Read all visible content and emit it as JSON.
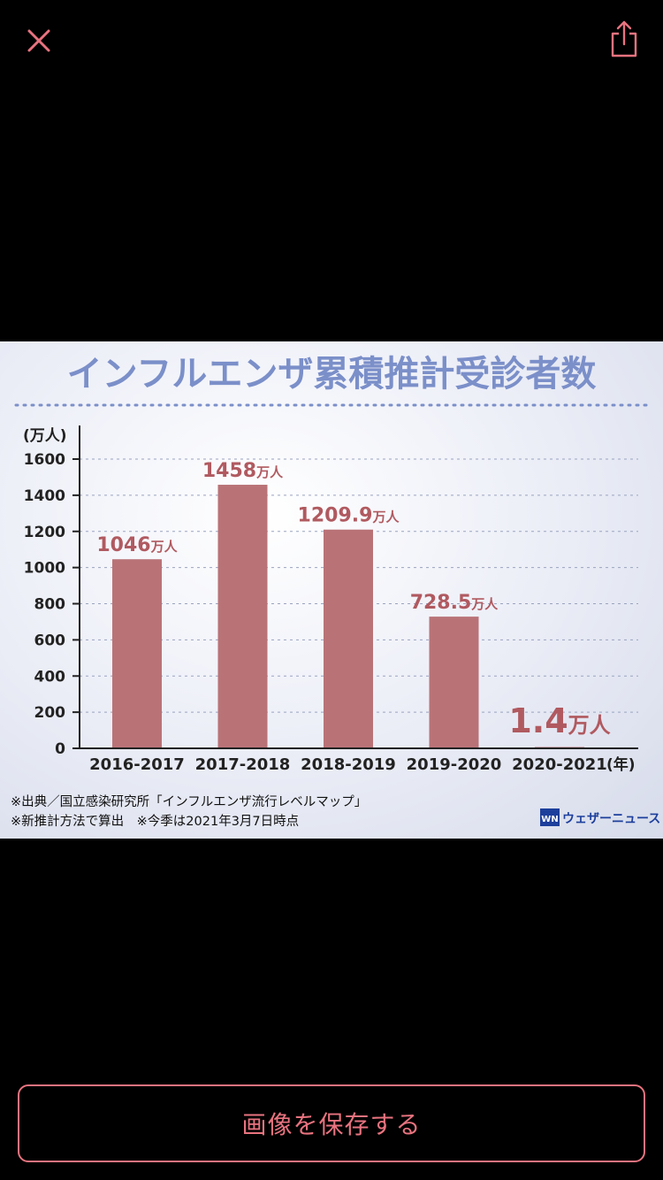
{
  "viewer": {
    "close_icon": "close-icon",
    "share_icon": "share-icon",
    "save_button_label": "画像を保存する",
    "accent_color": "#e8737f"
  },
  "image": {
    "chart_data": {
      "type": "bar",
      "title": "インフルエンザ累積推計受診者数",
      "ylabel": "(万人)",
      "xlabel_unit": "(年)",
      "ylim": [
        0,
        1600
      ],
      "yticks": [
        0,
        200,
        400,
        600,
        800,
        1000,
        1200,
        1400,
        1600
      ],
      "categories": [
        "2016-2017",
        "2017-2018",
        "2018-2019",
        "2019-2020",
        "2020-2021"
      ],
      "values": [
        1046,
        1458,
        1209.9,
        728.5,
        1.4
      ],
      "value_labels": [
        "1046",
        "1458",
        "1209.9",
        "728.5",
        "1.4"
      ],
      "value_unit": "万人",
      "bar_color": "#b97377",
      "label_color": "#b05a60",
      "title_color": "#7b8fc9",
      "grid": true,
      "notes": [
        "※出典／国立感染研究所「インフルエンザ流行レベルマップ」",
        "※新推計方法で算出　※今季は2021年3月7日時点"
      ],
      "logo_text": "ウェザーニュース"
    }
  }
}
